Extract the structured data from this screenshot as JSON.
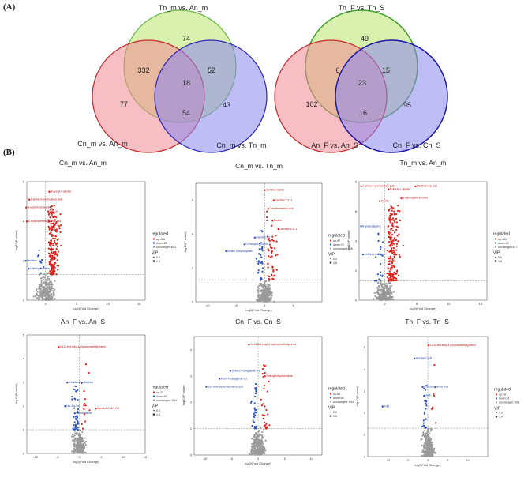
{
  "panel_labels": {
    "a": "(A)",
    "b": "(B)"
  },
  "colors": {
    "up": "#e0201b",
    "down": "#2a52be",
    "unchanged": "#9a9a9a",
    "ann_up": "#b01010",
    "ann_down": "#1d3fa0"
  },
  "venns": [
    {
      "top_title": "Tn_m vs. An_m",
      "left_title": "Cn_m vs. An_m",
      "right_title": "Cn_m vs. Tn_m",
      "counts": {
        "top": "74",
        "left": "77",
        "right": "43",
        "top_left": "332",
        "top_right": "52",
        "left_right": "54",
        "center": "18"
      }
    },
    {
      "top_title": "Tn_F vs. Tn_S",
      "left_title": "An_F vs. An_S",
      "right_title": "Cn_F vs. Cn_S",
      "counts": {
        "top": "49",
        "left": "102",
        "right": "95",
        "top_left": "6",
        "top_right": "15",
        "left_right": "16",
        "center": "23"
      }
    }
  ],
  "chart_data": [
    {
      "type": "scatter",
      "title": "Cn_m vs. An_m",
      "xlabel": "log2(Fold Change)",
      "ylabel": "-log10(P value)",
      "xlim": [
        -3,
        16
      ],
      "ylim": [
        0,
        6
      ],
      "x_ticks": [
        "0",
        "5",
        "10",
        "15"
      ],
      "y_ticks": [
        "0",
        "2",
        "4",
        "6"
      ],
      "p_threshold": 1.3,
      "fc_threshold": 0,
      "counts": {
        "up": "up:456",
        "down": "down:23",
        "unchanged": "unchanged:613"
      },
      "vip": [
        "0.0",
        "1.5"
      ],
      "annotations": [
        {
          "text": "N-Acetyl-L-alanine",
          "x": 0.8,
          "y": 5.5,
          "dir": "up"
        },
        {
          "text": "2-amino-4-oxo-butanoic acid",
          "x": -2.4,
          "y": 5.1,
          "dir": "up"
        },
        {
          "text": "N-acetyl-beta-alanine",
          "x": -2.9,
          "y": 4.7,
          "dir": "up"
        },
        {
          "text": "Glu-Leu",
          "x": 0.6,
          "y": 4.5,
          "dir": "up"
        },
        {
          "text": "D-Hydroxymethylglutaric acid",
          "x": -2.8,
          "y": 4.0,
          "dir": "up"
        },
        {
          "text": "Ornithine",
          "x": -3.0,
          "y": 2.0,
          "dir": "down"
        },
        {
          "text": "1-Methyl-histidine",
          "x": -2.5,
          "y": 1.6,
          "dir": "down"
        }
      ]
    },
    {
      "type": "scatter",
      "title": "Cn_m vs. Tn_m",
      "xlabel": "log2(Fold Change)",
      "ylabel": "-log10(P value)",
      "xlim": [
        -12,
        10
      ],
      "ylim": [
        0,
        7
      ],
      "x_ticks": [
        "-10",
        "-5",
        "0",
        "5"
      ],
      "y_ticks": [
        "0",
        "2",
        "4",
        "6"
      ],
      "p_threshold": 1.3,
      "fc_threshold": 0,
      "counts": {
        "up": "up:97",
        "down": "down:70",
        "unchanged": "unchanged:926"
      },
      "vip": [
        "0.0",
        "1.5"
      ],
      "annotations": [
        {
          "text": "Carnitine C6:DC",
          "x": 0.2,
          "y": 6.6,
          "dir": "up"
        },
        {
          "text": "Carnitine C17:1",
          "x": 1.8,
          "y": 6.0,
          "dir": "up"
        },
        {
          "text": "Octadecenedioic acid",
          "x": 0.8,
          "y": 5.5,
          "dir": "up"
        },
        {
          "text": "Proline",
          "x": 1.6,
          "y": 4.8,
          "dir": "up"
        },
        {
          "text": "Carnitine C11:1",
          "x": 2.6,
          "y": 4.3,
          "dir": "up"
        },
        {
          "text": "Carnitine C8",
          "x": -1.5,
          "y": 3.8,
          "dir": "down"
        },
        {
          "text": "D-Phospho-L-Serine",
          "x": -3.3,
          "y": 3.4,
          "dir": "down"
        },
        {
          "text": "Uridine 5'-diphosphate",
          "x": -6.5,
          "y": 3.0,
          "dir": "down"
        }
      ]
    },
    {
      "type": "scatter",
      "title": "Tn_m vs. An_m",
      "xlabel": "log2(Fold Change)",
      "ylabel": "-log10(P value)",
      "xlim": [
        -4,
        16
      ],
      "ylim": [
        0,
        8
      ],
      "x_ticks": [
        "0",
        "5",
        "10",
        "15"
      ],
      "y_ticks": [
        "0",
        "2",
        "4",
        "6",
        "8"
      ],
      "p_threshold": 1.3,
      "fc_threshold": 0,
      "counts": {
        "up": "up:441",
        "down": "down:45",
        "unchanged": "unchanged:617"
      },
      "vip": [
        "0.0",
        "1.5"
      ],
      "annotations": [
        {
          "text": "2-amino-4-oxo-butanoic acid",
          "x": -3.5,
          "y": 7.7,
          "dir": "up"
        },
        {
          "text": "N-Acetyl-L-alanine",
          "x": 0.8,
          "y": 7.5,
          "dir": "up"
        },
        {
          "text": "Threitoluronic acid",
          "x": 5.0,
          "y": 7.7,
          "dir": "up"
        },
        {
          "text": "S-Adenosylmethionine",
          "x": 2.8,
          "y": 6.9,
          "dir": "up"
        },
        {
          "text": "Tyr-Glu",
          "x": -0.6,
          "y": 6.7,
          "dir": "up"
        },
        {
          "text": "N-glutarylglycine",
          "x": -3.5,
          "y": 5.0,
          "dir": "down"
        },
        {
          "text": "1-Methyl-histidine",
          "x": -3.2,
          "y": 3.1,
          "dir": "down"
        }
      ]
    },
    {
      "type": "scatter",
      "title": "An_F vs. An_S",
      "xlabel": "log2(Fold Change)",
      "ylabel": "-log10(P value)",
      "xlim": [
        -12,
        15
      ],
      "ylim": [
        0,
        5
      ],
      "x_ticks": [
        "-10",
        "-5",
        "0",
        "5",
        "10",
        "15"
      ],
      "y_ticks": [
        "0",
        "1",
        "2",
        "3",
        "4",
        "5"
      ],
      "p_threshold": 1.0,
      "fc_threshold": 0,
      "counts": {
        "up": "up:32",
        "down": "down:97",
        "unchanged": "unchanged: 944"
      },
      "vip": [
        "0.0",
        "1.6"
      ],
      "annotations": [
        {
          "text": "2,6-Di-tert-butyl-4-(hydroxymethyl)phenol",
          "x": -4.5,
          "y": 4.5,
          "dir": "up"
        },
        {
          "text": "5-Carboxyvanillic Acid",
          "x": -2.5,
          "y": 3.0,
          "dir": "down"
        },
        {
          "text": "Leu-Ala-Val",
          "x": -3.0,
          "y": 2.0,
          "dir": "down"
        },
        {
          "text": "Carnitine C14:1-OH",
          "x": 4.0,
          "y": 1.9,
          "dir": "up"
        },
        {
          "text": "Homocysteine",
          "x": -0.8,
          "y": 1.7,
          "dir": "down"
        }
      ]
    },
    {
      "type": "scatter",
      "title": "Cn_F vs. Cn_S",
      "xlabel": "log2(Fold Change)",
      "ylabel": "-log10(P value)",
      "xlim": [
        -12,
        12
      ],
      "ylim": [
        0,
        4.5
      ],
      "x_ticks": [
        "-10",
        "-5",
        "0",
        "5",
        "10"
      ],
      "y_ticks": [
        "0",
        "1",
        "2",
        "3",
        "4"
      ],
      "p_threshold": 1.0,
      "fc_threshold": 0,
      "counts": {
        "up": "up:66",
        "down": "down:69",
        "unchanged": "unchanged: 944"
      },
      "vip": [
        "0.0",
        "1.6"
      ],
      "annotations": [
        {
          "text": "2,6-Di-tert-butyl-4-(hydroxymethyl)phenol",
          "x": -1.5,
          "y": 4.2,
          "dir": "up"
        },
        {
          "text": "16-keto-Prostaglandin E1",
          "x": -5.0,
          "y": 3.2,
          "dir": "down"
        },
        {
          "text": "9-oxo-Prostaglandin E2",
          "x": -7.0,
          "y": 2.9,
          "dir": "down"
        },
        {
          "text": "Tridecylphosphocholine",
          "x": 1.5,
          "y": 3.0,
          "dir": "up"
        },
        {
          "text": "9(S)-Hydroxyhexadecanoic acid",
          "x": -9.5,
          "y": 2.6,
          "dir": "down"
        }
      ]
    },
    {
      "type": "scatter",
      "title": "Tn_F vs. Tn_S",
      "xlabel": "log2(Fold Change)",
      "ylabel": "-log10(P value)",
      "xlim": [
        -15,
        15
      ],
      "ylim": [
        0,
        5.5
      ],
      "x_ticks": [
        "-10",
        "-5",
        "0",
        "5",
        "10"
      ],
      "y_ticks": [
        "0",
        "1",
        "2",
        "3",
        "4",
        "5"
      ],
      "p_threshold": 1.3,
      "fc_threshold": 0,
      "counts": {
        "up": "up:18",
        "down": "down:51",
        "unchanged": "unchanged: 998"
      },
      "vip": [
        "0.0",
        "1.4"
      ],
      "annotations": [
        {
          "text": "2,6-Di-tert-butyl-4-(hydroxymethyl)phenol",
          "x": 0.5,
          "y": 5.1,
          "dir": "up"
        },
        {
          "text": "Isobutyric acid",
          "x": -3.0,
          "y": 4.5,
          "dir": "down"
        },
        {
          "text": "5-Carboxyvanillic Acid",
          "x": -1.0,
          "y": 3.2,
          "dir": "down"
        },
        {
          "text": "EPA",
          "x": -0.5,
          "y": 2.8,
          "dir": "down"
        },
        {
          "text": "TxB1",
          "x": -11.0,
          "y": 2.3,
          "dir": "down"
        }
      ]
    }
  ],
  "legend": {
    "regulated_label": "regulated",
    "vip_label": "VIP"
  }
}
